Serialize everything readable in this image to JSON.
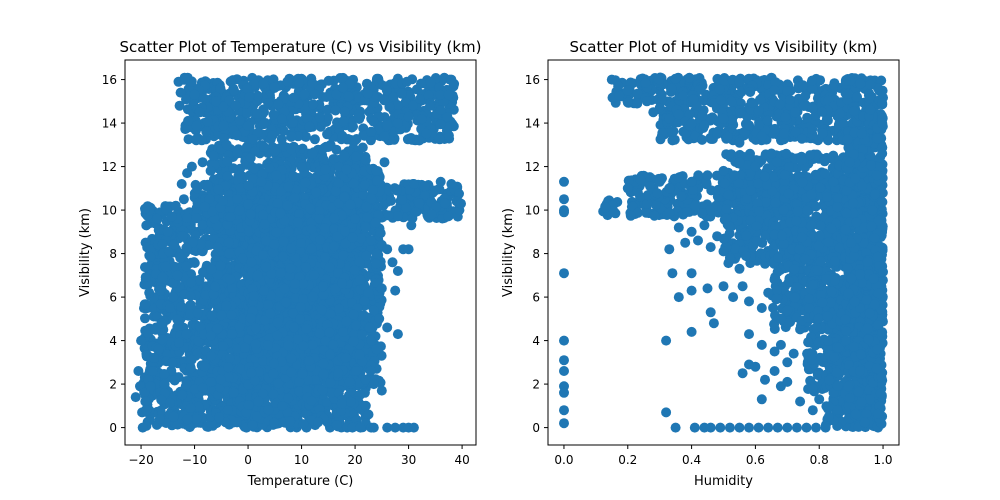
{
  "colors": {
    "marker": "#1f77b4",
    "axes": "#000000",
    "background": "#ffffff"
  },
  "chart_data": [
    {
      "type": "scatter",
      "title": "Scatter Plot of Temperature (C) vs Visibility (km)",
      "xlabel": "Temperature (C)",
      "ylabel": "Visibility (km)",
      "xlim": [
        -23.0,
        42.6
      ],
      "ylim": [
        -0.8,
        16.9
      ],
      "xticks": [
        -20,
        -10,
        0,
        10,
        20,
        30,
        40
      ],
      "yticks": [
        0,
        2,
        4,
        6,
        8,
        10,
        12,
        14,
        16
      ],
      "grid": false,
      "legend": "none",
      "regions": [
        {
          "x": [
            -19.5,
            17.5
          ],
          "y": [
            0.0,
            10.2
          ]
        },
        {
          "x": [
            -7.0,
            22.0
          ],
          "y": [
            0.0,
            13.0
          ]
        },
        {
          "x": [
            -12.0,
            38.5
          ],
          "y": [
            13.2,
            16.1
          ]
        },
        {
          "x": [
            -10.0,
            39.5
          ],
          "y": [
            9.6,
            11.2
          ]
        },
        {
          "x": [
            0.0,
            25.0
          ],
          "y": [
            2.0,
            12.0
          ]
        }
      ],
      "points": [
        [
          -21.0,
          1.4
        ],
        [
          -20.5,
          2.6
        ],
        [
          -20.2,
          1.9
        ],
        [
          -20.0,
          4.0
        ],
        [
          -19.8,
          0.7
        ],
        [
          -19.7,
          0.0
        ],
        [
          -19.4,
          1.6
        ],
        [
          -19.2,
          1.2
        ],
        [
          -19.0,
          0.8
        ],
        [
          -18.6,
          2.2
        ],
        [
          -18.2,
          1.9
        ],
        [
          -17.8,
          2.6
        ],
        [
          -17.6,
          3.2
        ],
        [
          -17.3,
          4.5
        ],
        [
          -17.0,
          5.1
        ],
        [
          -16.7,
          3.6
        ],
        [
          -16.4,
          6.3
        ],
        [
          -16.2,
          4.8
        ],
        [
          -16.0,
          6.9
        ],
        [
          -15.8,
          8.0
        ],
        [
          -15.6,
          2.0
        ],
        [
          -15.4,
          7.4
        ],
        [
          -15.2,
          10.0
        ],
        [
          -15.0,
          9.0
        ],
        [
          -14.8,
          8.1
        ],
        [
          -14.6,
          5.5
        ],
        [
          -14.3,
          9.7
        ],
        [
          -14.0,
          6.0
        ],
        [
          -13.8,
          8.4
        ],
        [
          -13.5,
          10.2
        ],
        [
          -13.2,
          7.0
        ],
        [
          -13.0,
          15.9
        ],
        [
          -12.8,
          14.8
        ],
        [
          -12.6,
          15.4
        ],
        [
          -12.4,
          11.2
        ],
        [
          -12.2,
          8.8
        ],
        [
          -12.0,
          10.5
        ],
        [
          -11.8,
          16.0
        ],
        [
          -11.6,
          15.1
        ],
        [
          -11.4,
          11.7
        ],
        [
          -11.2,
          14.1
        ],
        [
          -10.5,
          12.0
        ],
        [
          -10.0,
          15.3
        ],
        [
          -9.5,
          11.0
        ],
        [
          -9.0,
          14.5
        ],
        [
          -8.5,
          12.2
        ],
        [
          -7.8,
          13.6
        ],
        [
          -7.0,
          11.8
        ],
        [
          -6.5,
          12.5
        ],
        [
          -6.0,
          15.0
        ],
        [
          -5.0,
          12.8
        ],
        [
          -4.0,
          13.0
        ],
        [
          -2.0,
          12.6
        ],
        [
          0.5,
          12.4
        ],
        [
          3.0,
          12.9
        ],
        [
          5.0,
          12.7
        ],
        [
          8.0,
          12.8
        ],
        [
          12.0,
          12.6
        ],
        [
          15.0,
          12.9
        ],
        [
          18.0,
          12.5
        ],
        [
          22.0,
          12.3
        ],
        [
          24.0,
          11.8
        ],
        [
          25.5,
          12.2
        ],
        [
          20.0,
          13.2
        ],
        [
          23.0,
          13.6
        ],
        [
          26.0,
          13.9
        ],
        [
          28.0,
          14.0
        ],
        [
          30.0,
          14.3
        ],
        [
          32.0,
          13.2
        ],
        [
          34.0,
          14.8
        ],
        [
          36.0,
          14.6
        ],
        [
          37.5,
          15.3
        ],
        [
          38.0,
          16.0
        ],
        [
          38.5,
          15.8
        ],
        [
          18.0,
          10.6
        ],
        [
          20.0,
          9.6
        ],
        [
          22.0,
          9.2
        ],
        [
          23.0,
          8.6
        ],
        [
          24.0,
          8.0
        ],
        [
          25.0,
          8.4
        ],
        [
          26.0,
          8.2
        ],
        [
          27.0,
          7.6
        ],
        [
          28.0,
          7.2
        ],
        [
          29.0,
          8.2
        ],
        [
          30.0,
          8.2
        ],
        [
          30.5,
          9.3
        ],
        [
          31.0,
          11.2
        ],
        [
          33.0,
          11.1
        ],
        [
          35.0,
          10.9
        ],
        [
          36.0,
          11.3
        ],
        [
          38.0,
          11.2
        ],
        [
          39.0,
          10.4
        ],
        [
          39.5,
          10.0
        ],
        [
          39.8,
          10.3
        ],
        [
          21.0,
          6.8
        ],
        [
          22.5,
          6.2
        ],
        [
          23.5,
          5.4
        ],
        [
          24.5,
          5.0
        ],
        [
          25.0,
          6.4
        ],
        [
          26.0,
          4.6
        ],
        [
          27.5,
          6.3
        ],
        [
          28.0,
          4.3
        ],
        [
          23.0,
          4.0
        ],
        [
          24.0,
          3.6
        ],
        [
          22.0,
          2.2
        ],
        [
          23.5,
          2.0
        ],
        [
          25.0,
          1.7
        ],
        [
          22.0,
          1.0
        ],
        [
          22.5,
          0.6
        ],
        [
          22.0,
          0.2
        ],
        [
          17.5,
          1.1
        ],
        [
          18.5,
          0.0
        ],
        [
          19.5,
          0.0
        ],
        [
          21.0,
          0.0
        ],
        [
          23.0,
          0.0
        ],
        [
          23.5,
          0.0
        ],
        [
          26.0,
          0.0
        ],
        [
          27.5,
          0.0
        ],
        [
          29.0,
          0.0
        ],
        [
          30.0,
          0.0
        ],
        [
          31.0,
          0.0
        ]
      ]
    },
    {
      "type": "scatter",
      "title": "Scatter Plot of Humidity vs Visibility (km)",
      "xlabel": "Humidity",
      "ylabel": "Visibility (km)",
      "xlim": [
        -0.05,
        1.05
      ],
      "ylim": [
        -0.8,
        16.9
      ],
      "xticks": [
        0.0,
        0.2,
        0.4,
        0.6,
        0.8,
        1.0
      ],
      "yticks": [
        0,
        2,
        4,
        6,
        8,
        10,
        12,
        14,
        16
      ],
      "grid": false,
      "legend": "none",
      "regions": [
        {
          "x": [
            0.15,
            1.0
          ],
          "y": [
            14.9,
            16.1
          ]
        },
        {
          "x": [
            0.3,
            1.0
          ],
          "y": [
            13.2,
            15.1
          ]
        },
        {
          "x": [
            0.12,
            1.0
          ],
          "y": [
            9.7,
            10.5
          ]
        },
        {
          "x": [
            0.2,
            1.0
          ],
          "y": [
            10.6,
            11.6
          ]
        },
        {
          "x": [
            0.5,
            1.0
          ],
          "y": [
            7.5,
            12.6
          ]
        },
        {
          "x": [
            0.65,
            1.0
          ],
          "y": [
            4.5,
            9.5
          ]
        },
        {
          "x": [
            0.76,
            1.0
          ],
          "y": [
            1.5,
            7.0
          ]
        },
        {
          "x": [
            0.82,
            1.0
          ],
          "y": [
            0.0,
            4.0
          ]
        },
        {
          "x": [
            0.88,
            1.0
          ],
          "y": [
            0.0,
            16.0
          ]
        }
      ],
      "points": [
        [
          0.0,
          11.3
        ],
        [
          0.0,
          10.5
        ],
        [
          0.0,
          10.0
        ],
        [
          0.0,
          9.9
        ],
        [
          0.0,
          7.1
        ],
        [
          0.0,
          4.0
        ],
        [
          0.0,
          3.1
        ],
        [
          0.0,
          2.6
        ],
        [
          0.0,
          1.9
        ],
        [
          0.0,
          1.6
        ],
        [
          0.0,
          0.8
        ],
        [
          0.0,
          0.2
        ],
        [
          0.15,
          16.0
        ],
        [
          0.17,
          15.7
        ],
        [
          0.2,
          15.5
        ],
        [
          0.23,
          14.9
        ],
        [
          0.26,
          15.0
        ],
        [
          0.3,
          14.7
        ],
        [
          0.28,
          14.5
        ],
        [
          0.33,
          14.2
        ],
        [
          0.36,
          14.4
        ],
        [
          0.4,
          14.0
        ],
        [
          0.44,
          13.9
        ],
        [
          0.48,
          13.5
        ],
        [
          0.5,
          14.2
        ],
        [
          0.55,
          13.1
        ],
        [
          0.58,
          13.9
        ],
        [
          0.62,
          13.4
        ],
        [
          0.2,
          11.0
        ],
        [
          0.24,
          11.4
        ],
        [
          0.27,
          11.1
        ],
        [
          0.3,
          11.3
        ],
        [
          0.33,
          11.0
        ],
        [
          0.36,
          11.5
        ],
        [
          0.4,
          11.3
        ],
        [
          0.45,
          11.6
        ],
        [
          0.5,
          11.8
        ],
        [
          0.55,
          12.2
        ],
        [
          0.6,
          12.0
        ],
        [
          0.65,
          12.6
        ],
        [
          0.33,
          8.2
        ],
        [
          0.36,
          9.2
        ],
        [
          0.38,
          8.5
        ],
        [
          0.4,
          9.0
        ],
        [
          0.42,
          8.6
        ],
        [
          0.44,
          9.3
        ],
        [
          0.46,
          8.3
        ],
        [
          0.48,
          8.8
        ],
        [
          0.5,
          8.1
        ],
        [
          0.52,
          7.8
        ],
        [
          0.55,
          7.3
        ],
        [
          0.57,
          7.9
        ],
        [
          0.34,
          7.1
        ],
        [
          0.4,
          7.1
        ],
        [
          0.36,
          6.0
        ],
        [
          0.4,
          6.3
        ],
        [
          0.45,
          6.4
        ],
        [
          0.5,
          6.5
        ],
        [
          0.53,
          6.0
        ],
        [
          0.56,
          6.5
        ],
        [
          0.58,
          5.8
        ],
        [
          0.62,
          5.5
        ],
        [
          0.64,
          6.2
        ],
        [
          0.68,
          5.0
        ],
        [
          0.46,
          5.3
        ],
        [
          0.47,
          4.8
        ],
        [
          0.32,
          4.0
        ],
        [
          0.4,
          4.4
        ],
        [
          0.58,
          4.3
        ],
        [
          0.62,
          3.8
        ],
        [
          0.66,
          3.5
        ],
        [
          0.68,
          3.8
        ],
        [
          0.7,
          3.0
        ],
        [
          0.72,
          3.4
        ],
        [
          0.56,
          2.5
        ],
        [
          0.58,
          2.9
        ],
        [
          0.6,
          2.8
        ],
        [
          0.63,
          2.2
        ],
        [
          0.66,
          2.6
        ],
        [
          0.68,
          1.9
        ],
        [
          0.7,
          2.1
        ],
        [
          0.62,
          1.3
        ],
        [
          0.74,
          1.2
        ],
        [
          0.78,
          0.8
        ],
        [
          0.8,
          1.3
        ],
        [
          0.32,
          0.7
        ],
        [
          0.35,
          0.0
        ],
        [
          0.41,
          0.0
        ],
        [
          0.44,
          0.0
        ],
        [
          0.46,
          0.0
        ],
        [
          0.49,
          0.0
        ],
        [
          0.52,
          0.0
        ],
        [
          0.55,
          0.0
        ],
        [
          0.58,
          0.0
        ],
        [
          0.61,
          0.0
        ],
        [
          0.64,
          0.0
        ],
        [
          0.67,
          0.0
        ],
        [
          0.7,
          0.0
        ],
        [
          0.73,
          0.0
        ],
        [
          0.76,
          0.0
        ],
        [
          0.79,
          0.0
        ],
        [
          0.82,
          0.0
        ]
      ]
    }
  ]
}
